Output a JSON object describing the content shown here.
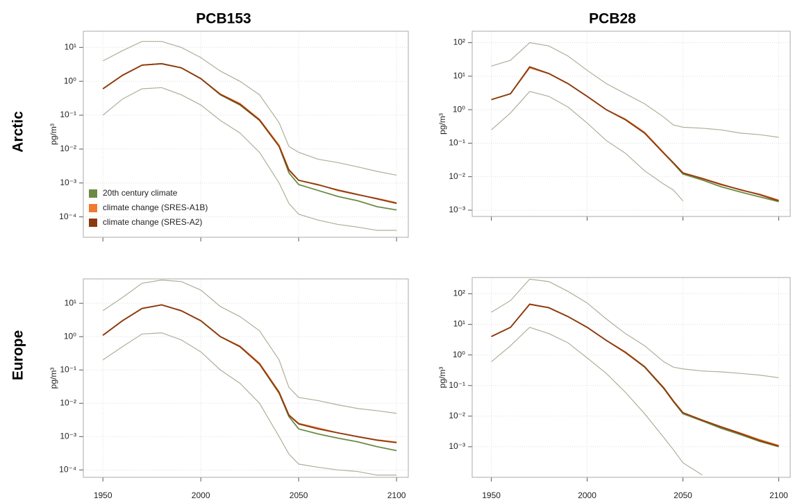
{
  "column_titles": [
    "PCB153",
    "PCB28"
  ],
  "row_titles": [
    "Arctic",
    "Europe"
  ],
  "chart_data": [
    {
      "type": "line",
      "y_label": "pg/m³",
      "ylog": true,
      "grid": true,
      "xtick_labels": false,
      "legend": "bottom-left",
      "x": [
        1950,
        1960,
        1970,
        1980,
        1990,
        2000,
        2010,
        2020,
        2030,
        2040,
        2045,
        2050,
        2060,
        2070,
        2080,
        2090,
        2100
      ],
      "xlim": [
        1940,
        2106
      ],
      "xticks": [
        1950,
        2000,
        2050,
        2100
      ],
      "ylim": [
        2.5e-05,
        30
      ],
      "yticks": [
        {
          "value": 0.0001,
          "label": "10⁻⁴"
        },
        {
          "value": 0.001,
          "label": "10⁻³"
        },
        {
          "value": 0.01,
          "label": "10⁻²"
        },
        {
          "value": 0.1,
          "label": "10⁻¹"
        },
        {
          "value": 1,
          "label": "10⁰"
        },
        {
          "value": 10,
          "label": "10¹"
        }
      ],
      "series": [
        {
          "color": "#b0ad98",
          "values": [
            4,
            8,
            15,
            15,
            10,
            5,
            2,
            1,
            0.4,
            0.06,
            0.012,
            0.008,
            0.005,
            0.004,
            0.003,
            0.0022,
            0.0017
          ]
        },
        {
          "color": "#b0ad98",
          "values": [
            0.1,
            0.3,
            0.6,
            0.65,
            0.4,
            0.2,
            0.07,
            0.03,
            0.008,
            0.001,
            0.00025,
            0.00012,
            8e-05,
            6e-05,
            5e-05,
            4e-05,
            4e-05
          ]
        },
        {
          "name": "20th century climate",
          "color": "#6d8a45",
          "values": [
            0.6,
            1.5,
            3,
            3.3,
            2.5,
            1.2,
            0.4,
            0.2,
            0.07,
            0.012,
            0.002,
            0.0009,
            0.0006,
            0.0004,
            0.0003,
            0.0002,
            0.00016
          ]
        },
        {
          "name": "climate change (SRES-A1B)",
          "color": "#f07a30",
          "values": [
            0.6,
            1.5,
            3,
            3.3,
            2.5,
            1.2,
            0.42,
            0.22,
            0.075,
            0.013,
            0.0025,
            0.0012,
            0.0009,
            0.0006,
            0.00045,
            0.00035,
            0.00026
          ]
        },
        {
          "name": "climate change (SRES-A2)",
          "color": "#8b3a10",
          "values": [
            0.6,
            1.5,
            3,
            3.3,
            2.5,
            1.2,
            0.41,
            0.21,
            0.072,
            0.012,
            0.0024,
            0.0012,
            0.00088,
            0.00062,
            0.00046,
            0.00034,
            0.00025
          ]
        }
      ]
    },
    {
      "type": "line",
      "y_label": "pg/m³",
      "ylog": true,
      "grid": true,
      "xtick_labels": false,
      "x": [
        1950,
        1960,
        1970,
        1980,
        1990,
        2000,
        2010,
        2020,
        2030,
        2040,
        2045,
        2050,
        2060,
        2070,
        2080,
        2090,
        2100
      ],
      "xlim": [
        1940,
        2106
      ],
      "xticks": [
        1950,
        2000,
        2050,
        2100
      ],
      "ylim": [
        0.00065,
        220
      ],
      "yticks": [
        {
          "value": 0.001,
          "label": "10⁻³"
        },
        {
          "value": 0.01,
          "label": "10⁻²"
        },
        {
          "value": 0.1,
          "label": "10⁻¹"
        },
        {
          "value": 1,
          "label": "10⁰"
        },
        {
          "value": 10,
          "label": "10¹"
        },
        {
          "value": 100,
          "label": "10²"
        }
      ],
      "series": [
        {
          "color": "#b0ad98",
          "values": [
            20,
            30,
            100,
            80,
            40,
            15,
            6,
            3,
            1.5,
            0.6,
            0.35,
            0.3,
            0.28,
            0.25,
            0.2,
            0.18,
            0.15
          ]
        },
        {
          "color": "#b0ad98",
          "values": [
            0.25,
            0.8,
            3.5,
            2.5,
            1.2,
            0.4,
            0.12,
            0.05,
            0.015,
            0.006,
            0.004,
            0.0019,
            null,
            null,
            null,
            null,
            null
          ]
        },
        {
          "color": "#6d8a45",
          "values": [
            2,
            3,
            18,
            12,
            6,
            2.5,
            1,
            0.5,
            0.2,
            0.05,
            0.025,
            0.012,
            0.008,
            0.005,
            0.0035,
            0.0025,
            0.0018
          ]
        },
        {
          "color": "#f07a30",
          "values": [
            2,
            3,
            18,
            12,
            6,
            2.5,
            1,
            0.52,
            0.21,
            0.052,
            0.026,
            0.013,
            0.009,
            0.006,
            0.004,
            0.003,
            0.002
          ]
        },
        {
          "color": "#8b3a10",
          "values": [
            2,
            3,
            19,
            12,
            6,
            2.5,
            1,
            0.5,
            0.2,
            0.05,
            0.026,
            0.013,
            0.0088,
            0.0058,
            0.0041,
            0.0029,
            0.0019
          ]
        }
      ]
    },
    {
      "type": "line",
      "y_label": "pg/m³",
      "ylog": true,
      "grid": true,
      "x": [
        1950,
        1960,
        1970,
        1980,
        1990,
        2000,
        2010,
        2020,
        2030,
        2040,
        2045,
        2050,
        2060,
        2070,
        2080,
        2090,
        2100
      ],
      "xlim": [
        1940,
        2106
      ],
      "xticks": [
        1950,
        2000,
        2050,
        2100
      ],
      "ylim": [
        6e-05,
        54
      ],
      "yticks": [
        {
          "value": 0.0001,
          "label": "10⁻⁴"
        },
        {
          "value": 0.001,
          "label": "10⁻³"
        },
        {
          "value": 0.01,
          "label": "10⁻²"
        },
        {
          "value": 0.1,
          "label": "10⁻¹"
        },
        {
          "value": 1,
          "label": "10⁰"
        },
        {
          "value": 10,
          "label": "10¹"
        }
      ],
      "series": [
        {
          "color": "#b0ad98",
          "values": [
            6,
            15,
            40,
            50,
            45,
            25,
            8,
            4,
            1.5,
            0.2,
            0.03,
            0.015,
            0.012,
            0.009,
            0.007,
            0.006,
            0.005
          ]
        },
        {
          "color": "#b0ad98",
          "values": [
            0.2,
            0.5,
            1.2,
            1.3,
            0.8,
            0.35,
            0.1,
            0.04,
            0.01,
            0.001,
            0.0003,
            0.00015,
            0.00012,
            0.0001,
            9e-05,
            7e-05,
            7e-05
          ]
        },
        {
          "color": "#6d8a45",
          "values": [
            1.1,
            3,
            7,
            9,
            6,
            3,
            1,
            0.5,
            0.15,
            0.02,
            0.004,
            0.0017,
            0.0012,
            0.0009,
            0.0007,
            0.0005,
            0.00038
          ]
        },
        {
          "color": "#f07a30",
          "values": [
            1.1,
            3,
            7,
            9,
            6,
            3,
            1,
            0.52,
            0.16,
            0.022,
            0.0045,
            0.0025,
            0.0018,
            0.0013,
            0.001,
            0.0008,
            0.00068
          ]
        },
        {
          "color": "#8b3a10",
          "values": [
            1.1,
            3,
            7,
            9,
            6,
            3,
            1,
            0.5,
            0.15,
            0.021,
            0.0044,
            0.0024,
            0.0017,
            0.0013,
            0.001,
            0.00078,
            0.00066
          ]
        }
      ]
    },
    {
      "type": "line",
      "y_label": "pg/m³",
      "ylog": true,
      "grid": true,
      "x": [
        1950,
        1960,
        1970,
        1980,
        1990,
        2000,
        2010,
        2020,
        2030,
        2040,
        2045,
        2050,
        2060,
        2070,
        2080,
        2090,
        2100
      ],
      "xlim": [
        1940,
        2106
      ],
      "xticks": [
        1950,
        2000,
        2050,
        2100
      ],
      "ylim": [
        0.0001,
        340
      ],
      "yticks": [
        {
          "value": 0.001,
          "label": "10⁻³"
        },
        {
          "value": 0.01,
          "label": "10⁻²"
        },
        {
          "value": 0.1,
          "label": "10⁻¹"
        },
        {
          "value": 1,
          "label": "10⁰"
        },
        {
          "value": 10,
          "label": "10¹"
        },
        {
          "value": 100,
          "label": "10²"
        }
      ],
      "series": [
        {
          "color": "#b0ad98",
          "values": [
            25,
            60,
            300,
            250,
            120,
            50,
            15,
            5,
            2,
            0.6,
            0.4,
            0.35,
            0.3,
            0.28,
            0.25,
            0.22,
            0.18
          ]
        },
        {
          "color": "#b0ad98",
          "values": [
            0.6,
            2,
            8,
            5,
            2.5,
            0.8,
            0.25,
            0.06,
            0.012,
            0.002,
            0.0008,
            0.0003,
            0.00012,
            null,
            null,
            null,
            null
          ]
        },
        {
          "color": "#6d8a45",
          "values": [
            4,
            8,
            45,
            35,
            18,
            8,
            3,
            1.2,
            0.4,
            0.08,
            0.03,
            0.012,
            0.007,
            0.004,
            0.0025,
            0.0015,
            0.001
          ]
        },
        {
          "color": "#f07a30",
          "values": [
            4,
            8,
            45,
            35,
            18,
            8,
            3,
            1.25,
            0.42,
            0.085,
            0.032,
            0.013,
            0.0075,
            0.0045,
            0.0028,
            0.0017,
            0.0011
          ]
        },
        {
          "color": "#8b3a10",
          "values": [
            4,
            8,
            46,
            35,
            18,
            8,
            3,
            1.2,
            0.41,
            0.083,
            0.031,
            0.013,
            0.0074,
            0.0044,
            0.0027,
            0.0016,
            0.00105
          ]
        }
      ]
    }
  ]
}
